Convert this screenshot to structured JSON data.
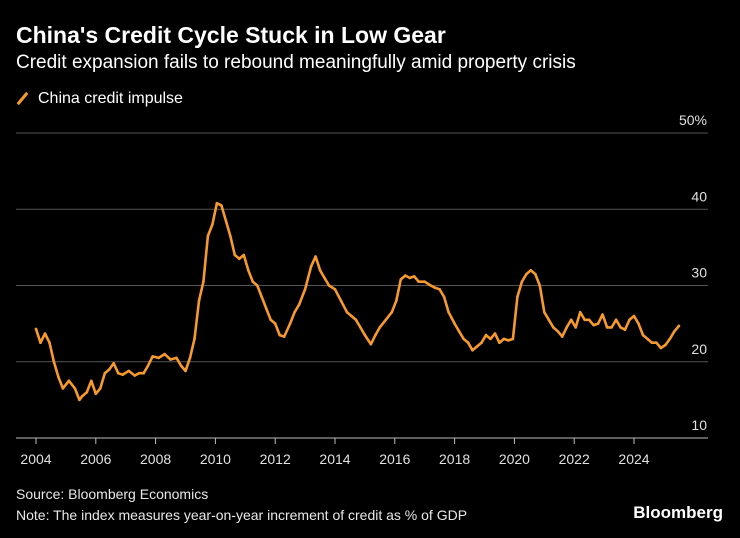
{
  "chart_data": {
    "type": "line",
    "title": "China's Credit Cycle Stuck in Low Gear",
    "subtitle": "Credit expansion fails to rebound meaningfully amid property crisis",
    "xlabel": "",
    "ylabel": "",
    "x_ticks": [
      "2004",
      "2006",
      "2008",
      "2010",
      "2012",
      "2014",
      "2016",
      "2018",
      "2020",
      "2022",
      "2024"
    ],
    "y_ticks": [
      "10",
      "20",
      "30",
      "40",
      "50%"
    ],
    "ylim": [
      10,
      50
    ],
    "xlim": [
      2003.9,
      2025.7
    ],
    "series": [
      {
        "name": "China credit impulse",
        "color": "#f79a2e",
        "x": [
          2004.0,
          2004.15,
          2004.3,
          2004.45,
          2004.6,
          2004.75,
          2004.9,
          2005.1,
          2005.3,
          2005.45,
          2005.55,
          2005.7,
          2005.85,
          2006.0,
          2006.15,
          2006.3,
          2006.45,
          2006.6,
          2006.75,
          2006.9,
          2007.1,
          2007.3,
          2007.45,
          2007.6,
          2007.75,
          2007.9,
          2008.1,
          2008.3,
          2008.5,
          2008.7,
          2008.85,
          2009.0,
          2009.15,
          2009.3,
          2009.45,
          2009.6,
          2009.75,
          2009.9,
          2010.05,
          2010.2,
          2010.35,
          2010.5,
          2010.65,
          2010.8,
          2010.95,
          2011.1,
          2011.25,
          2011.4,
          2011.55,
          2011.7,
          2011.85,
          2012.0,
          2012.15,
          2012.3,
          2012.5,
          2012.65,
          2012.8,
          2013.0,
          2013.2,
          2013.35,
          2013.5,
          2013.65,
          2013.8,
          2014.0,
          2014.2,
          2014.4,
          2014.55,
          2014.7,
          2014.85,
          2015.0,
          2015.2,
          2015.35,
          2015.5,
          2015.7,
          2015.9,
          2016.05,
          2016.2,
          2016.35,
          2016.5,
          2016.65,
          2016.8,
          2017.0,
          2017.2,
          2017.35,
          2017.5,
          2017.65,
          2017.8,
          2018.0,
          2018.15,
          2018.3,
          2018.45,
          2018.6,
          2018.75,
          2018.9,
          2019.05,
          2019.2,
          2019.35,
          2019.5,
          2019.65,
          2019.8,
          2019.95,
          2020.1,
          2020.25,
          2020.4,
          2020.55,
          2020.7,
          2020.85,
          2021.0,
          2021.15,
          2021.3,
          2021.45,
          2021.6,
          2021.75,
          2021.9,
          2022.05,
          2022.2,
          2022.35,
          2022.5,
          2022.65,
          2022.8,
          2022.95,
          2023.1,
          2023.25,
          2023.4,
          2023.55,
          2023.7,
          2023.85,
          2024.0,
          2024.15,
          2024.3,
          2024.45,
          2024.6,
          2024.75,
          2024.9,
          2025.05,
          2025.2,
          2025.35,
          2025.5
        ],
        "values": [
          24.3,
          22.5,
          23.7,
          22.5,
          20.0,
          18.0,
          16.5,
          17.5,
          16.5,
          15.0,
          15.5,
          16.0,
          17.5,
          15.8,
          16.5,
          18.5,
          19.0,
          19.8,
          18.5,
          18.3,
          18.8,
          18.2,
          18.5,
          18.5,
          19.5,
          20.7,
          20.5,
          21.0,
          20.3,
          20.5,
          19.5,
          18.8,
          20.5,
          23.0,
          28.0,
          30.5,
          36.5,
          38.0,
          40.8,
          40.5,
          38.5,
          36.5,
          34.0,
          33.5,
          34.0,
          32.0,
          30.5,
          30.0,
          28.5,
          27.0,
          25.5,
          25.0,
          23.5,
          23.3,
          25.0,
          26.5,
          27.5,
          29.5,
          32.5,
          33.8,
          32.0,
          31.0,
          30.0,
          29.5,
          28.0,
          26.5,
          26.0,
          25.5,
          24.5,
          23.5,
          22.3,
          23.5,
          24.5,
          25.5,
          26.5,
          28.0,
          30.8,
          31.3,
          31.0,
          31.2,
          30.5,
          30.5,
          30.0,
          29.7,
          29.5,
          28.5,
          26.5,
          25.0,
          24.0,
          23.0,
          22.5,
          21.5,
          22.0,
          22.5,
          23.5,
          23.0,
          23.7,
          22.5,
          23.0,
          22.8,
          23.0,
          28.5,
          30.5,
          31.5,
          32.0,
          31.5,
          30.0,
          26.5,
          25.5,
          24.5,
          24.0,
          23.3,
          24.5,
          25.5,
          24.5,
          26.5,
          25.5,
          25.5,
          24.8,
          25.0,
          26.2,
          24.5,
          24.5,
          25.5,
          24.5,
          24.2,
          25.5,
          26.0,
          25.0,
          23.5,
          23.0,
          22.5,
          22.5,
          21.8,
          22.2,
          23.0,
          24.0,
          24.7
        ]
      }
    ]
  },
  "legend_label": "China credit impulse",
  "source": "Source: Bloomberg Economics",
  "note": "Note: The index measures year-on-year increment of credit as % of GDP",
  "brand": "Bloomberg"
}
